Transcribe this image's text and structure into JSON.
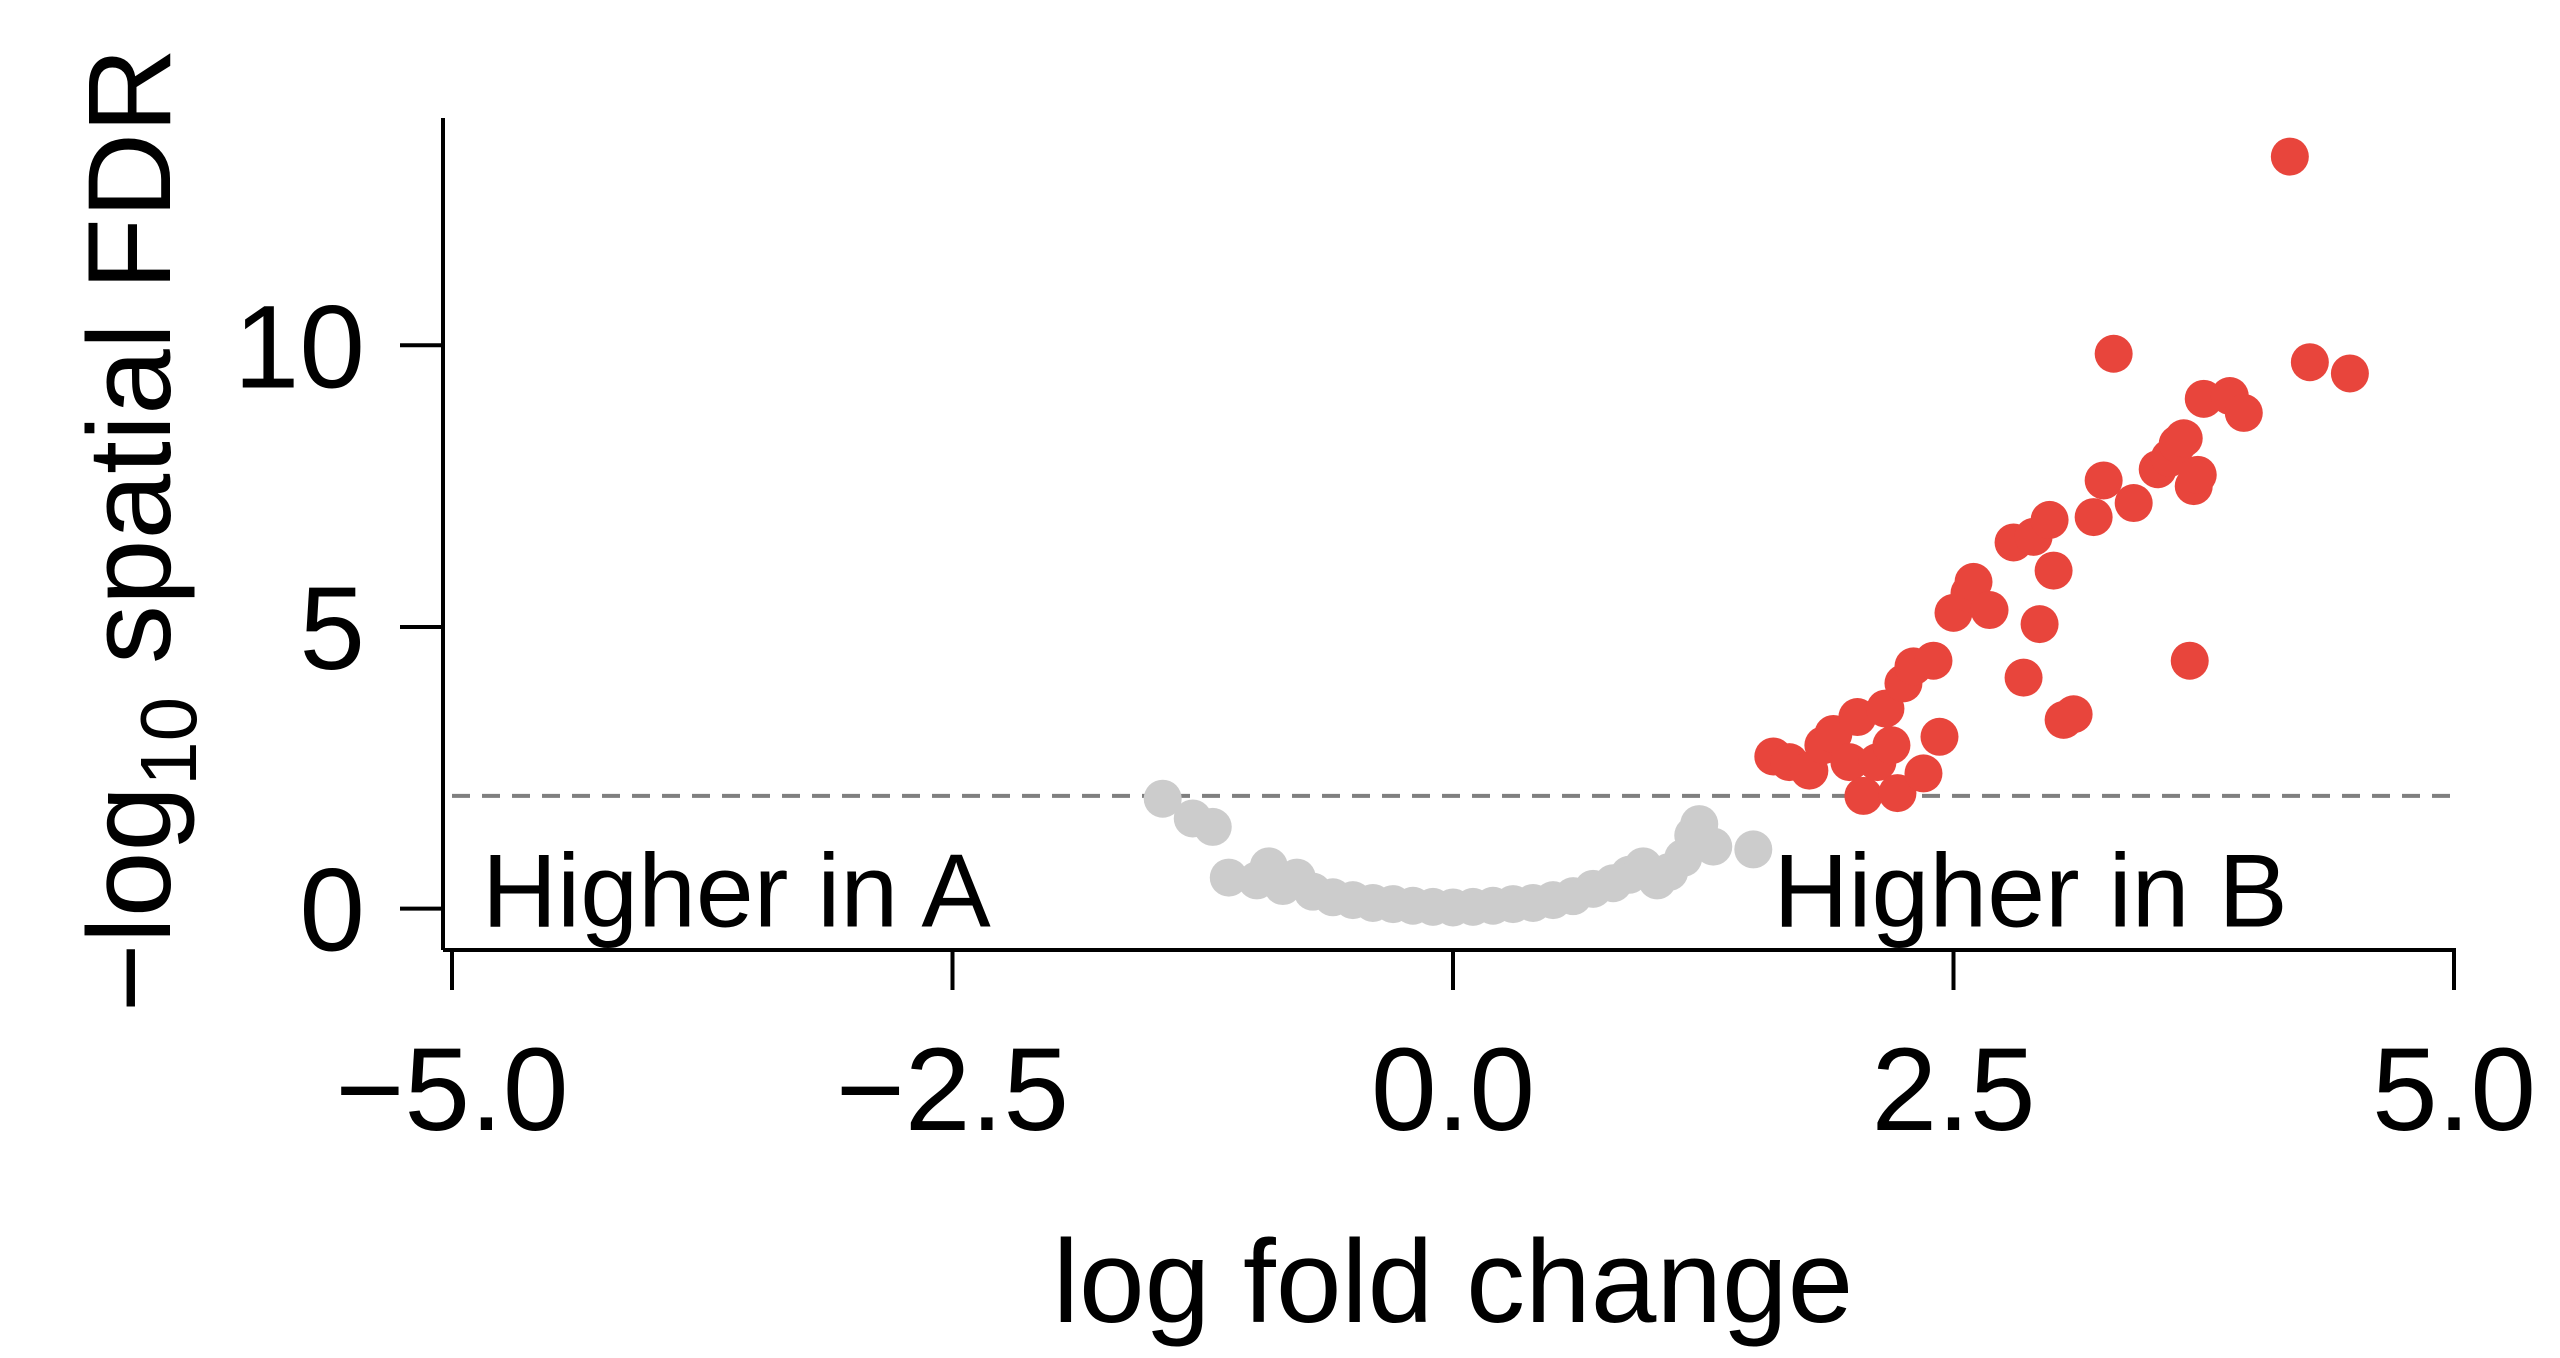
{
  "chart_data": {
    "type": "scatter",
    "title": "",
    "xlabel": "log fold change",
    "ylabel": {
      "prefix": "−log",
      "subscript": "10",
      "suffix": " spatial FDR"
    },
    "xlim": [
      -5.0,
      5.0
    ],
    "ylim": [
      -0.7,
      14.0
    ],
    "x_ticks": [
      -5.0,
      -2.5,
      0.0,
      2.5,
      5.0
    ],
    "x_tick_labels": [
      "−5.0",
      "−2.5",
      "0.0",
      "2.5",
      "5.0"
    ],
    "y_ticks": [
      0,
      5,
      10
    ],
    "y_tick_labels": [
      "0",
      "5",
      "10"
    ],
    "grid": false,
    "threshold": {
      "y": 2.0,
      "style": "dashed",
      "color": "#7f7f7f"
    },
    "annotations": [
      {
        "text": "Higher in A",
        "x": -4.85,
        "y": 0.0,
        "anchor": "start"
      },
      {
        "text": "Higher in B",
        "x": 1.6,
        "y": 0.0,
        "anchor": "start"
      }
    ],
    "colors": {
      "significant": "#e8453c",
      "not_significant": "#cccccc"
    },
    "series": [
      {
        "key": "not_significant",
        "points": [
          [
            -1.45,
            1.95
          ],
          [
            -1.3,
            1.6
          ],
          [
            -1.2,
            1.45
          ],
          [
            -1.12,
            0.55
          ],
          [
            -0.98,
            0.5
          ],
          [
            -0.92,
            0.75
          ],
          [
            -0.85,
            0.4
          ],
          [
            -0.78,
            0.55
          ],
          [
            -0.7,
            0.3
          ],
          [
            -0.6,
            0.2
          ],
          [
            -0.5,
            0.15
          ],
          [
            -0.4,
            0.1
          ],
          [
            -0.3,
            0.08
          ],
          [
            -0.2,
            0.05
          ],
          [
            -0.1,
            0.03
          ],
          [
            0.0,
            0.02
          ],
          [
            0.1,
            0.03
          ],
          [
            0.2,
            0.05
          ],
          [
            0.3,
            0.08
          ],
          [
            0.4,
            0.1
          ],
          [
            0.5,
            0.15
          ],
          [
            0.6,
            0.22
          ],
          [
            0.7,
            0.35
          ],
          [
            0.8,
            0.45
          ],
          [
            0.88,
            0.6
          ],
          [
            0.95,
            0.75
          ],
          [
            1.02,
            0.5
          ],
          [
            1.08,
            0.65
          ],
          [
            1.15,
            0.9
          ],
          [
            1.2,
            1.3
          ],
          [
            1.23,
            1.5
          ],
          [
            1.3,
            1.1
          ],
          [
            1.5,
            1.05
          ]
        ]
      },
      {
        "key": "significant",
        "points": [
          [
            1.6,
            2.7
          ],
          [
            1.68,
            2.6
          ],
          [
            1.78,
            2.45
          ],
          [
            1.85,
            2.9
          ],
          [
            1.9,
            3.1
          ],
          [
            1.98,
            2.6
          ],
          [
            2.02,
            3.4
          ],
          [
            2.05,
            2.0
          ],
          [
            2.12,
            2.6
          ],
          [
            2.16,
            3.55
          ],
          [
            2.19,
            2.9
          ],
          [
            2.22,
            2.05
          ],
          [
            2.25,
            4.0
          ],
          [
            2.3,
            4.3
          ],
          [
            2.35,
            2.4
          ],
          [
            2.4,
            4.4
          ],
          [
            2.43,
            3.05
          ],
          [
            2.5,
            5.25
          ],
          [
            2.58,
            5.6
          ],
          [
            2.6,
            5.8
          ],
          [
            2.68,
            5.3
          ],
          [
            2.8,
            6.5
          ],
          [
            2.85,
            4.1
          ],
          [
            2.9,
            6.6
          ],
          [
            2.93,
            5.05
          ],
          [
            2.98,
            6.9
          ],
          [
            3.0,
            6.0
          ],
          [
            3.05,
            3.35
          ],
          [
            3.1,
            3.45
          ],
          [
            3.2,
            6.95
          ],
          [
            3.25,
            7.6
          ],
          [
            3.3,
            9.85
          ],
          [
            3.4,
            7.2
          ],
          [
            3.52,
            7.8
          ],
          [
            3.58,
            8.0
          ],
          [
            3.62,
            8.25
          ],
          [
            3.65,
            8.35
          ],
          [
            3.68,
            4.4
          ],
          [
            3.7,
            7.5
          ],
          [
            3.72,
            7.7
          ],
          [
            3.75,
            9.05
          ],
          [
            3.88,
            9.1
          ],
          [
            3.95,
            8.8
          ],
          [
            4.18,
            13.35
          ],
          [
            4.28,
            9.7
          ],
          [
            4.48,
            9.5
          ]
        ]
      }
    ]
  }
}
